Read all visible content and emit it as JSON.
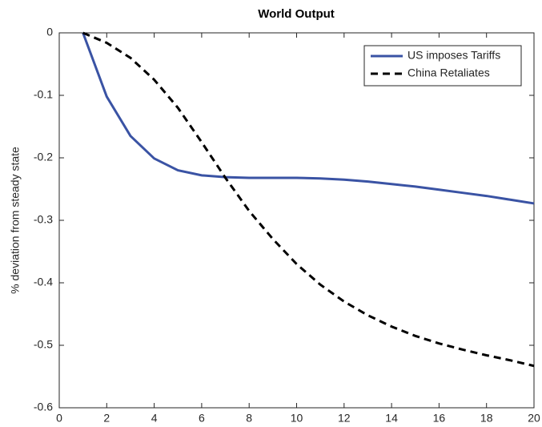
{
  "chart_data": {
    "type": "line",
    "title": "World Output",
    "y_label": "% deviation from steady state",
    "x": [
      1,
      2,
      3,
      4,
      5,
      6,
      7,
      8,
      9,
      10,
      11,
      12,
      13,
      14,
      15,
      16,
      17,
      18,
      19,
      20
    ],
    "series": [
      {
        "name": "US imposes Tariffs",
        "color": "#3a53a4",
        "dashed": false,
        "values": [
          0,
          -0.102,
          -0.165,
          -0.201,
          -0.22,
          -0.228,
          -0.231,
          -0.232,
          -0.232,
          -0.232,
          -0.233,
          -0.235,
          -0.238,
          -0.242,
          -0.246,
          -0.251,
          -0.256,
          -0.261,
          -0.267,
          -0.273
        ]
      },
      {
        "name": "China Retaliates",
        "color": "#000000",
        "dashed": true,
        "values": [
          0,
          -0.016,
          -0.04,
          -0.075,
          -0.12,
          -0.175,
          -0.232,
          -0.285,
          -0.33,
          -0.37,
          -0.403,
          -0.43,
          -0.452,
          -0.47,
          -0.485,
          -0.497,
          -0.507,
          -0.516,
          -0.524,
          -0.533
        ]
      }
    ],
    "xlim": [
      0,
      20
    ],
    "xticks": [
      0,
      2,
      4,
      6,
      8,
      10,
      12,
      14,
      16,
      18,
      20
    ],
    "ylim": [
      -0.6,
      0
    ],
    "yticks": [
      0,
      -0.1,
      -0.2,
      -0.3,
      -0.4,
      -0.5,
      -0.6
    ],
    "legend": "top-right"
  }
}
